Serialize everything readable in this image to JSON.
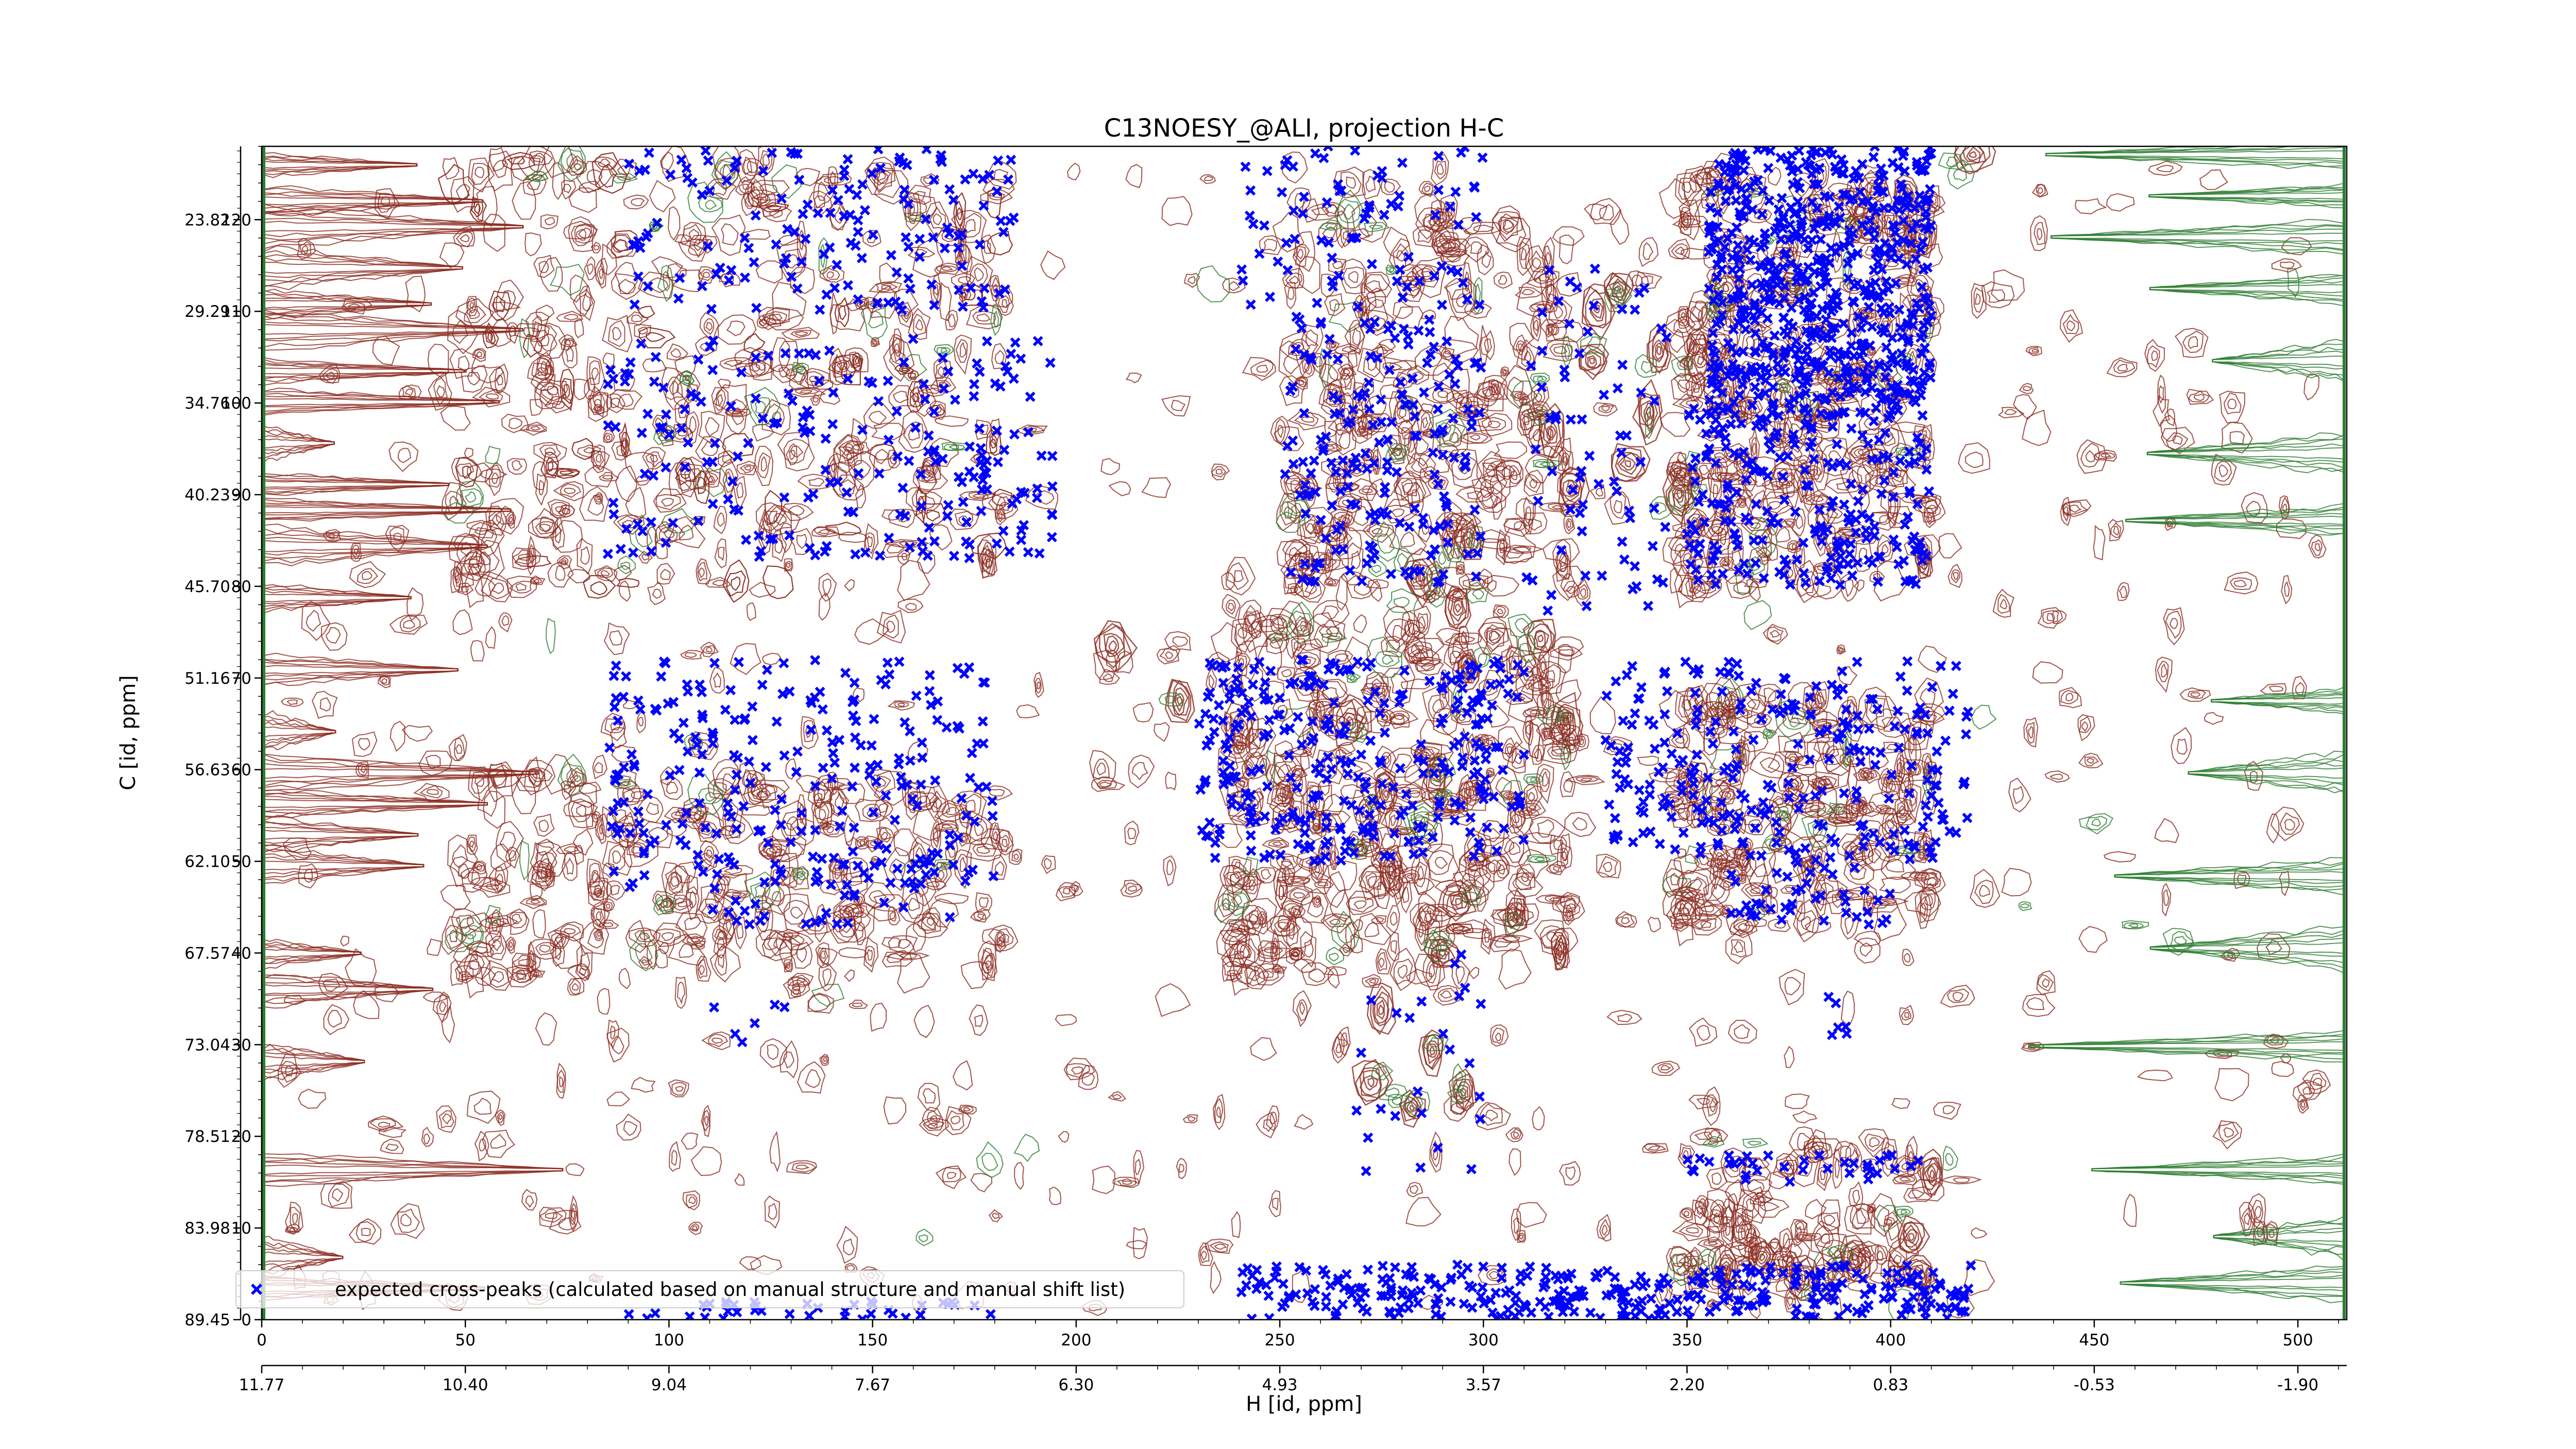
{
  "chart_data": {
    "type": "scatter",
    "title": "C13NOESY_@ALI, projection H-C",
    "xlabel": "H [id, ppm]",
    "ylabel": "C [id, ppm]",
    "x_index_range": [
      0,
      512
    ],
    "y_index_range": [
      0,
      128
    ],
    "x_index_ticks": [
      "0",
      "50",
      "100",
      "150",
      "200",
      "250",
      "300",
      "350",
      "400",
      "450",
      "500"
    ],
    "x_ppm_ticks": [
      "11.77",
      "10.40",
      "9.04",
      "7.67",
      "6.30",
      "4.93",
      "3.57",
      "2.20",
      "0.83",
      "-0.53",
      "-1.90"
    ],
    "y_index_ticks": [
      "0",
      "10",
      "20",
      "30",
      "40",
      "50",
      "60",
      "70",
      "80",
      "90",
      "100",
      "110",
      "120"
    ],
    "y_ppm_ticks": [
      "89.45",
      "83.98",
      "78.51",
      "73.04",
      "67.57",
      "62.10",
      "56.63",
      "51.16",
      "45.70",
      "40.23",
      "34.76",
      "29.29",
      "23.82"
    ],
    "grid": false,
    "legend_position": "lower-left",
    "series": [
      {
        "name": "expected cross-peaks (calculated based on manual structure and manual shift list)",
        "color": "#0000ff",
        "marker": "filled-x",
        "clusters": [
          {
            "x": [
              90,
              185
            ],
            "y": [
              110,
              128
            ],
            "n": 150
          },
          {
            "x": [
              85,
              195
            ],
            "y": [
              83,
              107
            ],
            "n": 210
          },
          {
            "x": [
              85,
              180
            ],
            "y": [
              47,
              72
            ],
            "n": 230
          },
          {
            "x": [
              110,
              170
            ],
            "y": [
              43,
              50
            ],
            "n": 40
          },
          {
            "x": [
              230,
              310
            ],
            "y": [
              50,
              72
            ],
            "n": 300
          },
          {
            "x": [
              250,
              300
            ],
            "y": [
              80,
              110
            ],
            "n": 180
          },
          {
            "x": [
              240,
              300
            ],
            "y": [
              110,
              128
            ],
            "n": 80
          },
          {
            "x": [
              310,
              345
            ],
            "y": [
              75,
              115
            ],
            "n": 70
          },
          {
            "x": [
              355,
              410
            ],
            "y": [
              100,
              128
            ],
            "n": 600
          },
          {
            "x": [
              350,
              410
            ],
            "y": [
              80,
              100
            ],
            "n": 250
          },
          {
            "x": [
              330,
              420
            ],
            "y": [
              50,
              72
            ],
            "n": 260
          },
          {
            "x": [
              360,
              400
            ],
            "y": [
              43,
              50
            ],
            "n": 40
          },
          {
            "x": [
              240,
              420
            ],
            "y": [
              0,
              6
            ],
            "n": 340
          },
          {
            "x": [
              350,
              410
            ],
            "y": [
              15,
              18
            ],
            "n": 35
          },
          {
            "x": [
              90,
              180
            ],
            "y": [
              0,
              2
            ],
            "n": 40
          },
          {
            "x": [
              260,
              300
            ],
            "y": [
              15,
              40
            ],
            "n": 25
          },
          {
            "x": [
              110,
              130
            ],
            "y": [
              30,
              36
            ],
            "n": 6
          },
          {
            "x": [
              380,
              390
            ],
            "y": [
              30,
              36
            ],
            "n": 6
          }
        ]
      }
    ],
    "contours": {
      "positive_color": "#8b2a1f",
      "negative_color": "#2e7d32"
    }
  }
}
